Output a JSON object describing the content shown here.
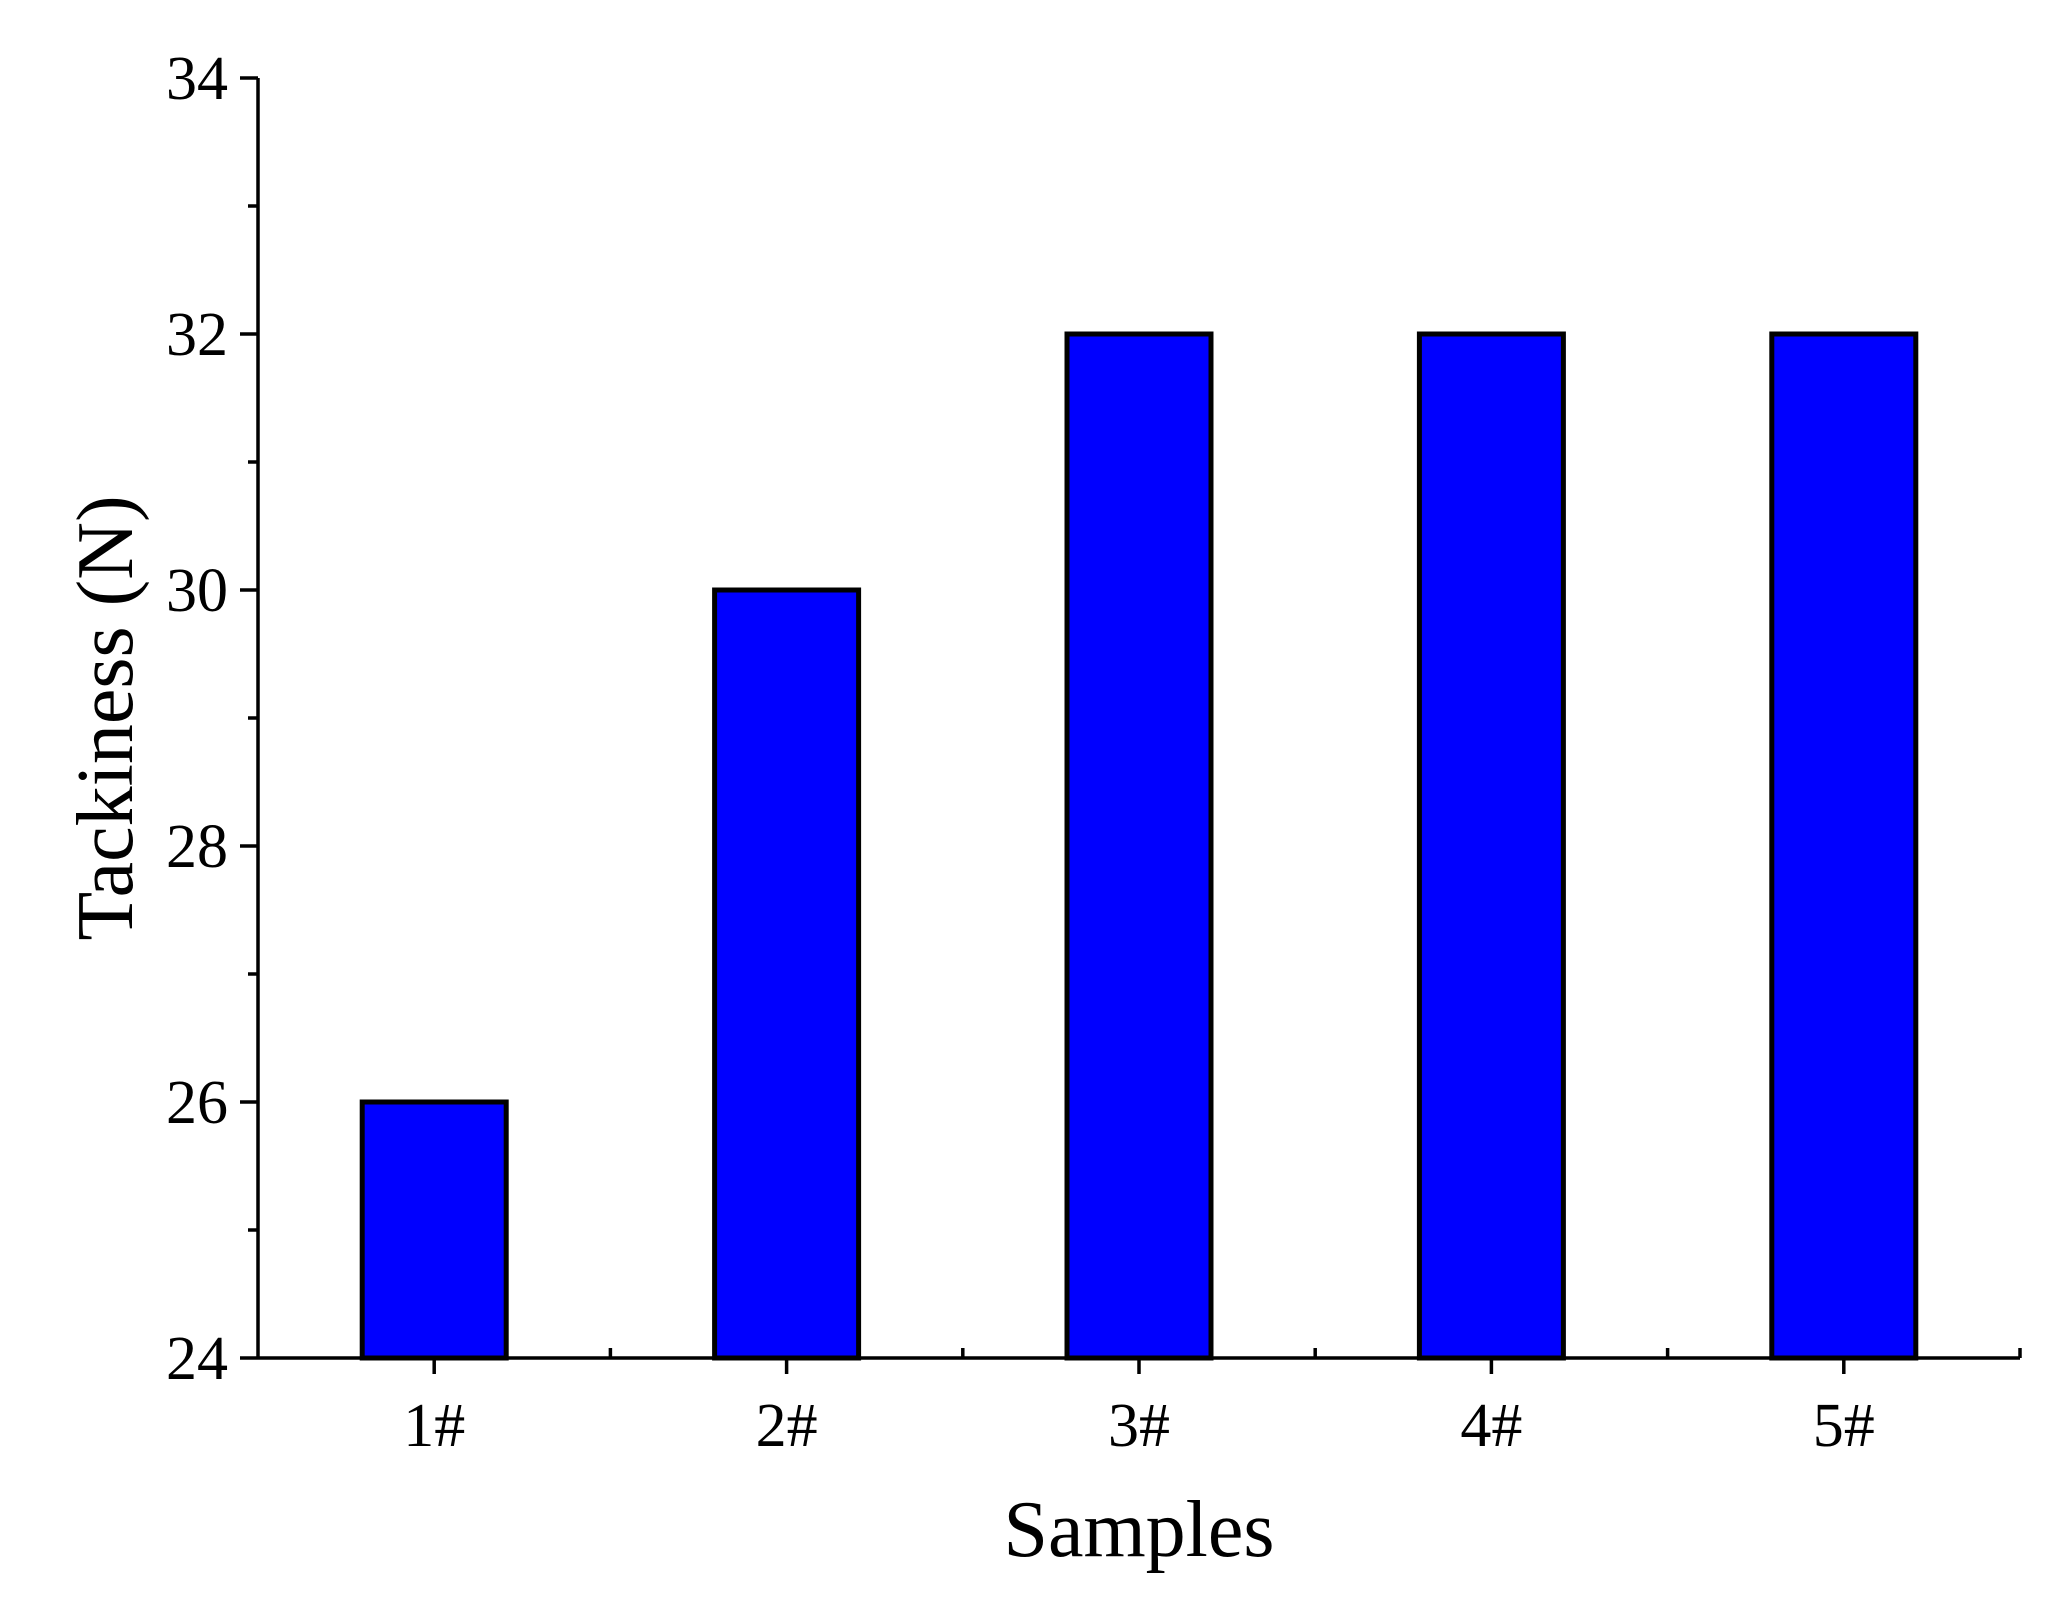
{
  "chart_data": {
    "type": "bar",
    "categories": [
      "1#",
      "2#",
      "3#",
      "4#",
      "5#"
    ],
    "values": [
      26,
      30,
      32,
      32,
      32
    ],
    "xlabel": "Samples",
    "ylabel": "Tackiness (N)",
    "ylim": [
      24,
      34
    ],
    "yticks": [
      24,
      26,
      28,
      30,
      32,
      34
    ],
    "y_minor_step": 1,
    "bar_color": "#0000ff",
    "bar_edge_color": "#000000",
    "grid": false,
    "legend": "none"
  }
}
